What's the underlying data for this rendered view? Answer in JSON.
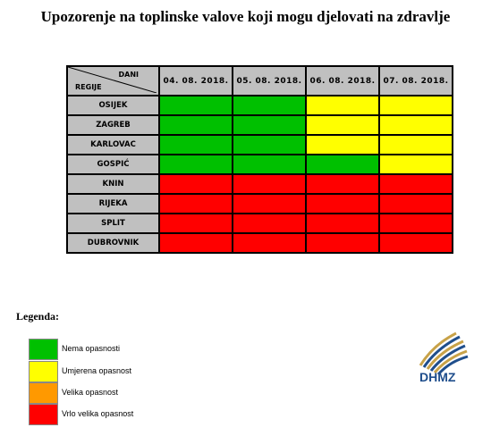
{
  "title": "Upozorenje na toplinske valove koji mogu djelovati na zdravlje",
  "table": {
    "corner_top": "DANI",
    "corner_bottom": "REGIJE",
    "dates": [
      "04. 08. 2018.",
      "05. 08. 2018.",
      "06. 08. 2018.",
      "07. 08. 2018."
    ],
    "rows": [
      {
        "region": "OSIJEK",
        "levels": [
          "green",
          "green",
          "yellow",
          "yellow"
        ]
      },
      {
        "region": "ZAGREB",
        "levels": [
          "green",
          "green",
          "yellow",
          "yellow"
        ]
      },
      {
        "region": "KARLOVAC",
        "levels": [
          "green",
          "green",
          "yellow",
          "yellow"
        ]
      },
      {
        "region": "GOSPIĆ",
        "levels": [
          "green",
          "green",
          "green",
          "yellow"
        ]
      },
      {
        "region": "KNIN",
        "levels": [
          "red",
          "red",
          "red",
          "red"
        ]
      },
      {
        "region": "RIJEKA",
        "levels": [
          "red",
          "red",
          "red",
          "red"
        ]
      },
      {
        "region": "SPLIT",
        "levels": [
          "red",
          "red",
          "red",
          "red"
        ]
      },
      {
        "region": "DUBROVNIK",
        "levels": [
          "red",
          "red",
          "red",
          "red"
        ]
      }
    ]
  },
  "colors": {
    "green": "#00c000",
    "yellow": "#ffff00",
    "orange": "#ff9900",
    "red": "#ff0000",
    "header_gray": "#c0c0c0"
  },
  "legend": {
    "title": "Legenda:",
    "items": [
      {
        "level": "green",
        "label": "Nema opasnosti"
      },
      {
        "level": "yellow",
        "label": "Umjerena opasnost"
      },
      {
        "level": "orange",
        "label": "Velika opasnost"
      },
      {
        "level": "red",
        "label": "Vrlo velika opasnost"
      }
    ]
  },
  "logo": {
    "text": "DHMZ",
    "icon": "dhmz-logo-icon"
  }
}
